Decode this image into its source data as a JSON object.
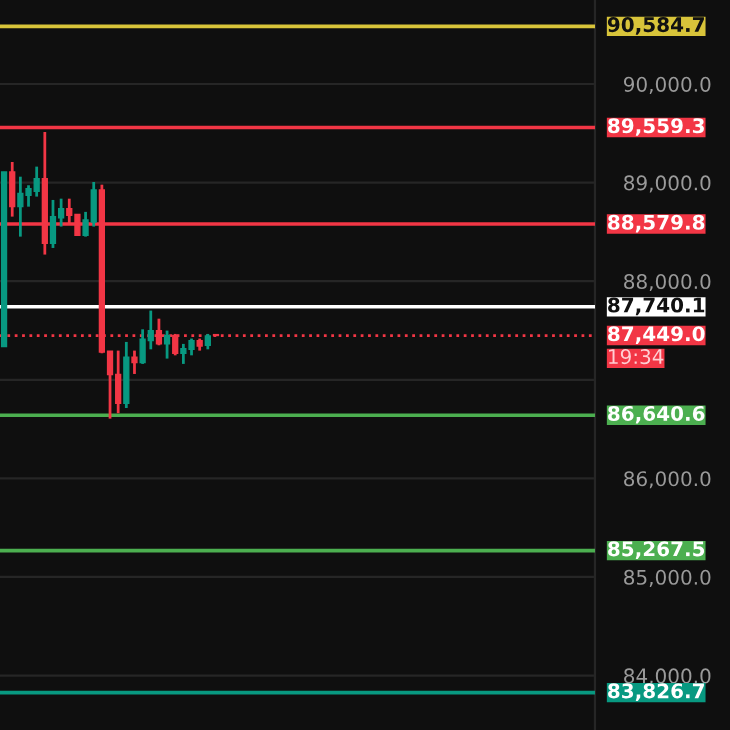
{
  "chart_data": {
    "type": "candlestick",
    "categories": [
      null,
      null,
      null,
      null,
      null,
      null,
      null,
      null,
      null,
      null,
      null,
      null,
      null,
      null,
      null,
      null,
      null,
      null,
      null,
      null,
      null,
      null,
      null,
      null,
      null,
      null,
      null,
      null,
      null,
      null,
      null,
      null,
      null,
      null,
      null,
      null,
      null,
      null,
      null,
      null,
      null,
      null,
      null,
      null,
      null,
      null,
      null,
      null,
      null,
      null,
      null,
      null,
      null,
      null,
      null,
      null,
      null,
      null,
      null,
      null,
      null,
      null,
      null,
      null,
      null,
      null,
      null,
      null,
      null,
      null,
      null,
      null,
      null
    ],
    "ohlc": [
      [
        87337,
        89108,
        87337,
        89108
      ],
      [
        89108,
        89209,
        88655,
        88756
      ],
      [
        88756,
        89060,
        88452,
        88891
      ],
      [
        88871,
        88973,
        88756,
        88939
      ],
      [
        88912,
        89162,
        88858,
        89040
      ],
      [
        89040,
        89513,
        88270,
        88385
      ],
      [
        88385,
        88824,
        88337,
        88655
      ],
      [
        88642,
        88837,
        88554,
        88736
      ],
      [
        88736,
        88837,
        88574,
        88669
      ],
      [
        88676,
        88676,
        88466,
        88466
      ],
      [
        88466,
        88703,
        88452,
        88621
      ],
      [
        88601,
        89006,
        88554,
        88925
      ],
      [
        88925,
        88979,
        87269,
        87282
      ],
      [
        87289,
        87289,
        86606,
        87053
      ],
      [
        87053,
        87296,
        86661,
        86762
      ],
      [
        86762,
        87384,
        86714,
        87228
      ],
      [
        87228,
        87296,
        87059,
        87174
      ],
      [
        87174,
        87512,
        87161,
        87411
      ],
      [
        87397,
        87702,
        87309,
        87499
      ],
      [
        87499,
        87620,
        87350,
        87364
      ],
      [
        87364,
        87499,
        87215,
        87451
      ],
      [
        87451,
        87465,
        87248,
        87269
      ],
      [
        87269,
        87364,
        87161,
        87316
      ],
      [
        87309,
        87418,
        87248,
        87397
      ],
      [
        87397,
        87418,
        87296,
        87343
      ],
      [
        87350,
        87465,
        87309,
        87445
      ],
      [
        87458,
        87460,
        87449,
        87449
      ],
      null,
      null,
      null,
      null,
      null,
      null,
      null,
      null,
      null,
      null,
      null,
      null,
      null,
      null,
      null,
      null,
      null,
      null,
      null,
      null,
      null,
      null,
      null,
      null,
      null,
      null,
      null,
      null,
      null,
      null,
      null,
      null,
      null,
      null,
      null,
      null,
      null,
      null,
      null,
      null,
      null,
      null,
      null,
      null,
      null,
      null
    ],
    "colors": [
      "#089981",
      "#f23645",
      "#089981",
      "#089981",
      "#089981",
      "#f23645",
      "#089981",
      "#089981",
      "#f23645",
      "#f23645",
      "#089981",
      "#089981",
      "#f23645",
      "#f23645",
      "#f23645",
      "#089981",
      "#f23645",
      "#089981",
      "#089981",
      "#f23645",
      "#089981",
      "#f23645",
      "#089981",
      "#089981",
      "#f23645",
      "#089981",
      "#f23645",
      null,
      null,
      null,
      null,
      null,
      null,
      null,
      null,
      null,
      null,
      null,
      null,
      null,
      null,
      null,
      null,
      null,
      null,
      null,
      null,
      null,
      null,
      null,
      null,
      null,
      null,
      null,
      null,
      null,
      null,
      null,
      null,
      null,
      null,
      null,
      null,
      null,
      null,
      null,
      null,
      null,
      null,
      null,
      null,
      null,
      null
    ],
    "ylim": [
      83448,
      90852
    ],
    "yticks": [
      {
        "value": 84000,
        "label": "84,000.0"
      },
      {
        "value": 85000,
        "label": "85,000.0"
      },
      {
        "value": 86000,
        "label": "86,000.0"
      },
      {
        "value": 87000,
        "label": null
      },
      {
        "value": 88000,
        "label": "88,000.0"
      },
      {
        "value": 89000,
        "label": "89,000.0"
      },
      {
        "value": 90000,
        "label": "90,000.0"
      }
    ],
    "grid": "y",
    "ref_lines": [
      {
        "axis": "y",
        "value": 90584.7,
        "label": "90,584.7",
        "color": "#d8c43a"
      },
      {
        "axis": "y",
        "value": 89559.3,
        "label": "89,559.3",
        "color": "#f23645"
      },
      {
        "axis": "y",
        "value": 88579.8,
        "label": "88,579.8",
        "color": "#f23645"
      },
      {
        "axis": "y",
        "value": 87740.1,
        "label": "87,740.1",
        "color": "#ffffff"
      },
      {
        "axis": "y",
        "value": 87449.0,
        "label": "87,449.0",
        "color": "#f23645",
        "line_style": "dotted"
      },
      {
        "axis": "y",
        "value": 86640.6,
        "label": "86,640.6",
        "color": "#4caf50"
      },
      {
        "axis": "y",
        "value": 85267.5,
        "label": "85,267.5",
        "color": "#4caf50"
      },
      {
        "axis": "y",
        "value": 83826.7,
        "label": "83,826.7",
        "color": "#089981"
      }
    ],
    "annotations": [
      "19:34"
    ]
  }
}
